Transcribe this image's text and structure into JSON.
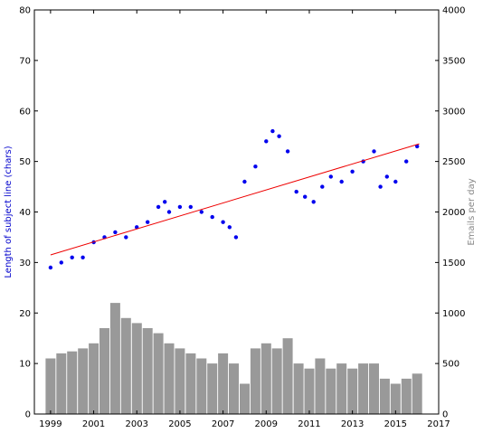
{
  "chart_data": {
    "type": "scatter",
    "xlabel": "",
    "ylabel_left": "Length of subject line (chars)",
    "ylabel_right": "Emails per day",
    "xlim": [
      1998.25,
      2017.0
    ],
    "ylim_left": [
      0,
      80
    ],
    "ylim_right": [
      0,
      4000
    ],
    "x_ticks": [
      1999,
      2001,
      2003,
      2005,
      2007,
      2009,
      2011,
      2013,
      2015,
      2017
    ],
    "x_tick_labels": [
      "1999",
      "2001",
      "2003",
      "2005",
      "2007",
      "2009",
      "2011",
      "2013",
      "2015",
      "2017"
    ],
    "y_left_ticks": [
      0,
      10,
      20,
      30,
      40,
      50,
      60,
      70,
      80
    ],
    "y_left_tick_labels": [
      "0",
      "10",
      "20",
      "30",
      "40",
      "50",
      "60",
      "70",
      "80"
    ],
    "y_right_ticks": [
      0,
      500,
      1000,
      1500,
      2000,
      2500,
      3000,
      3500,
      4000
    ],
    "y_right_tick_labels": [
      "0",
      "500",
      "1000",
      "1500",
      "2000",
      "2500",
      "3000",
      "3500",
      "4000"
    ],
    "grid": false,
    "legend": "none",
    "colors": {
      "scatter": "#0000ee",
      "trend": "#ee0000",
      "bars": "#999999",
      "left_label": "#0000cc",
      "right_label": "#888888",
      "axes": "#000000"
    },
    "series": [
      {
        "kind": "scatter",
        "axis": "left",
        "x": [
          1999.0,
          1999.5,
          2000.0,
          2000.5,
          2001.0,
          2001.5,
          2002.0,
          2002.5,
          2003.0,
          2003.5,
          2004.0,
          2004.3,
          2004.5,
          2005.0,
          2005.5,
          2006.0,
          2006.5,
          2007.0,
          2007.3,
          2007.6,
          2008.0,
          2008.5,
          2009.0,
          2009.3,
          2009.6,
          2010.0,
          2010.4,
          2010.8,
          2011.2,
          2011.6,
          2012.0,
          2012.5,
          2013.0,
          2013.5,
          2014.0,
          2014.3,
          2014.6,
          2015.0,
          2015.5,
          2016.0
        ],
        "y": [
          29,
          30,
          31,
          31,
          34,
          35,
          36,
          35,
          37,
          38,
          41,
          42,
          40,
          41,
          41,
          40,
          39,
          38,
          37,
          35,
          46,
          49,
          54,
          56,
          55,
          52,
          44,
          43,
          42,
          45,
          47,
          46,
          48,
          50,
          52,
          45,
          47,
          46,
          50,
          53
        ]
      },
      {
        "kind": "line",
        "axis": "left",
        "x": [
          1999.0,
          2016.1
        ],
        "y": [
          31.5,
          53.5
        ]
      },
      {
        "kind": "bar",
        "axis": "right",
        "x": [
          1999.0,
          1999.5,
          2000.0,
          2000.5,
          2001.0,
          2001.5,
          2002.0,
          2002.5,
          2003.0,
          2003.5,
          2004.0,
          2004.5,
          2005.0,
          2005.5,
          2006.0,
          2006.5,
          2007.0,
          2007.5,
          2008.0,
          2008.5,
          2009.0,
          2009.5,
          2010.0,
          2010.5,
          2011.0,
          2011.5,
          2012.0,
          2012.5,
          2013.0,
          2013.5,
          2014.0,
          2014.5,
          2015.0,
          2015.5,
          2016.0
        ],
        "y": [
          550,
          600,
          620,
          650,
          700,
          850,
          1100,
          950,
          900,
          850,
          800,
          700,
          650,
          600,
          550,
          500,
          600,
          500,
          300,
          650,
          700,
          650,
          750,
          500,
          450,
          550,
          450,
          500,
          450,
          500,
          500,
          350,
          300,
          350,
          400
        ]
      }
    ]
  }
}
